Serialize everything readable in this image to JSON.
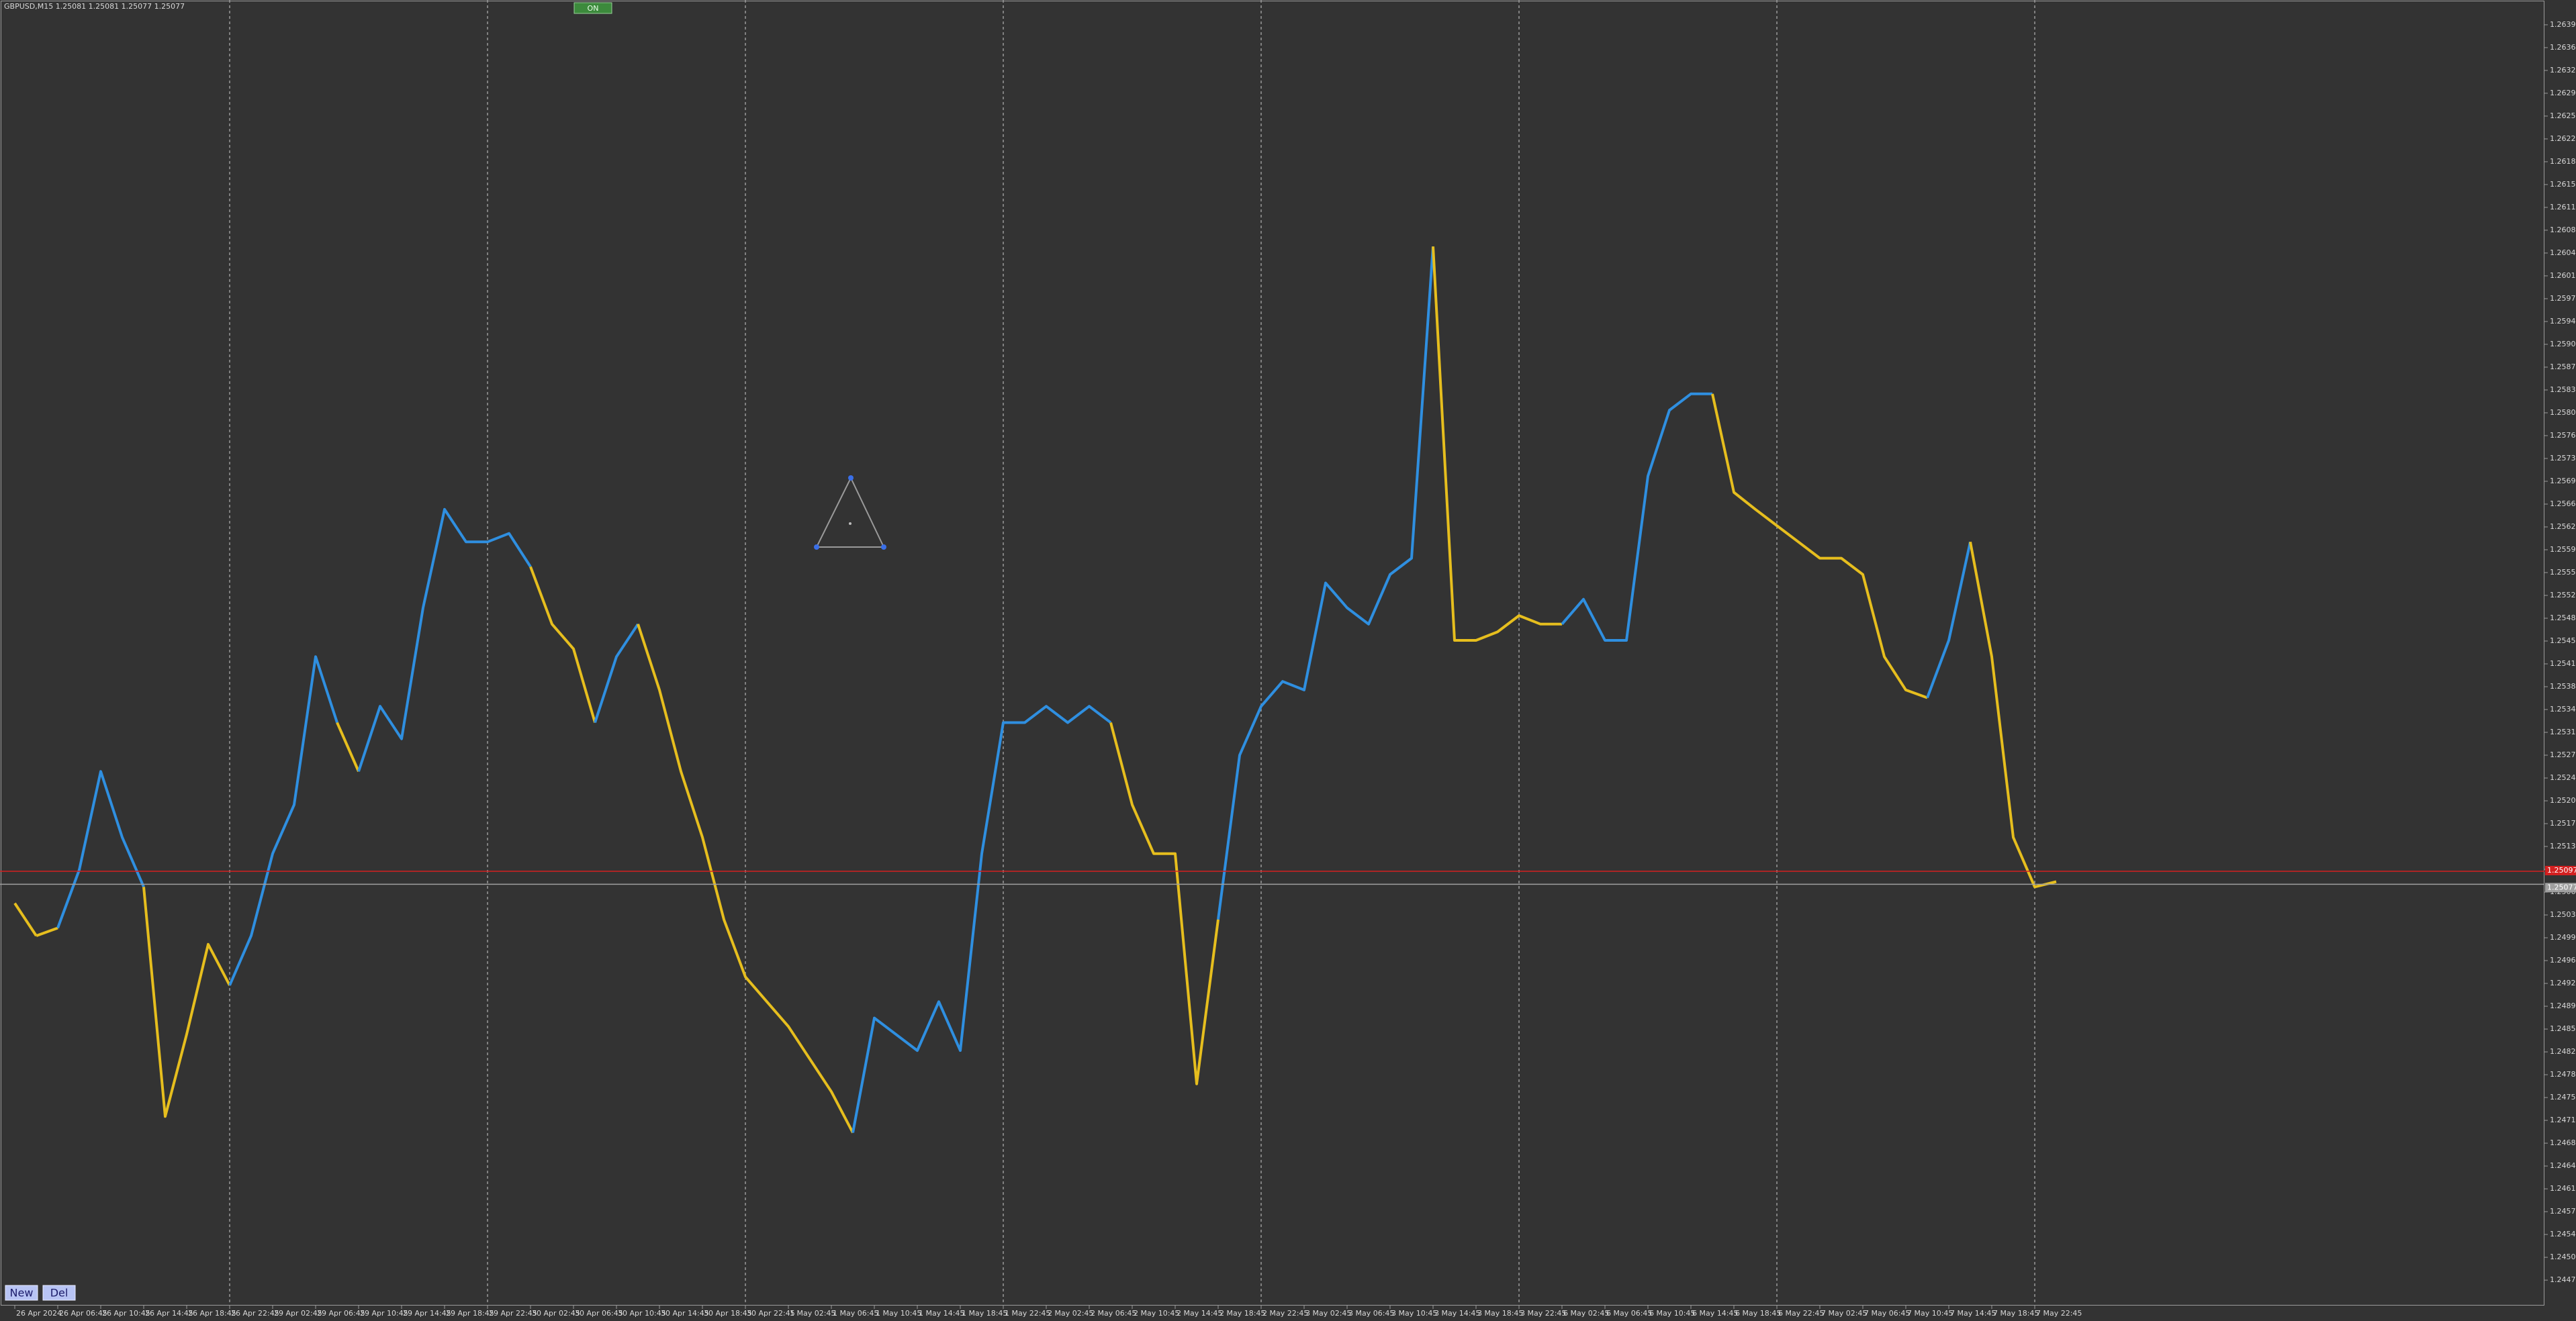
{
  "ui": {
    "header": "GBPUSD,M15  1.25081 1.25081 1.25077 1.25077",
    "toggle": "ON",
    "buttons": [
      "New",
      "Del"
    ]
  },
  "chart_data": {
    "type": "line",
    "categories": [
      "26 Apr 2024",
      null,
      "26 Apr 06:45",
      null,
      "26 Apr 10:45",
      null,
      "26 Apr 14:45",
      null,
      "26 Apr 18:45",
      null,
      "26 Apr 22:45",
      null,
      "29 Apr 02:45",
      null,
      "29 Apr 06:45",
      null,
      "29 Apr 10:45",
      null,
      "29 Apr 14:45",
      null,
      "29 Apr 18:45",
      null,
      "29 Apr 22:45",
      null,
      "30 Apr 02:45",
      null,
      "30 Apr 06:45",
      null,
      "30 Apr 10:45",
      null,
      "30 Apr 14:45",
      null,
      "30 Apr 18:45",
      null,
      "30 Apr 22:45",
      null,
      "1 May 02:45",
      null,
      "1 May 06:45",
      null,
      "1 May 10:45",
      null,
      "1 May 14:45",
      null,
      "1 May 18:45",
      null,
      "1 May 22:45",
      null,
      "2 May 02:45",
      null,
      "2 May 06:45",
      null,
      "2 May 10:45",
      null,
      "2 May 14:45",
      null,
      "2 May 18:45",
      null,
      "2 May 22:45",
      null,
      "3 May 02:45",
      null,
      "3 May 06:45",
      null,
      "3 May 10:45",
      null,
      "3 May 14:45",
      null,
      "3 May 18:45",
      null,
      "3 May 22:45",
      null,
      "6 May 02:45",
      null,
      "6 May 06:45",
      null,
      "6 May 10:45",
      null,
      "6 May 14:45",
      null,
      "6 May 18:45",
      null,
      "6 May 22:45",
      null,
      "7 May 02:45",
      null,
      "7 May 06:45",
      null,
      "7 May 10:45",
      null,
      "7 May 14:45",
      null,
      "7 May 18:45",
      null,
      "7 May 22:45",
      null
    ],
    "values": [
      1.25048,
      1.24998,
      1.2501,
      1.25099,
      1.2525,
      1.25149,
      1.25073,
      1.24721,
      1.24847,
      1.24985,
      1.24922,
      1.24998,
      1.25124,
      1.25199,
      1.25426,
      1.25325,
      1.2525,
      1.2535,
      1.253,
      1.25501,
      1.25652,
      1.25602,
      1.25602,
      1.25615,
      1.25564,
      1.25476,
      1.25438,
      1.25325,
      1.25426,
      1.25476,
      1.25375,
      1.2525,
      1.25149,
      1.25023,
      1.24935,
      1.24897,
      1.24859,
      1.24809,
      1.24759,
      1.24696,
      1.24872,
      1.24847,
      1.24822,
      1.24897,
      1.24822,
      1.25124,
      1.25325,
      1.25325,
      1.2535,
      1.25325,
      1.2535,
      1.25325,
      1.25199,
      1.25124,
      1.25124,
      1.24771,
      1.25023,
      1.25275,
      1.2535,
      1.25388,
      1.25375,
      1.25539,
      1.25501,
      1.25476,
      1.25552,
      1.25577,
      1.26055,
      1.25451,
      1.25451,
      1.25464,
      1.25489,
      1.25476,
      1.25476,
      1.25514,
      1.25451,
      1.25451,
      1.25703,
      1.25804,
      1.25829,
      1.25829,
      1.25678,
      1.25652,
      1.25627,
      1.25602,
      1.25577,
      1.25577,
      1.25552,
      1.25426,
      1.25375,
      1.25363,
      1.25451,
      1.25602,
      1.25426,
      1.25149,
      1.25073,
      1.25081
    ],
    "colors": [
      "#2f8fe0",
      "#e6be1e",
      "#e6be1e",
      "#2f8fe0",
      "#2f8fe0",
      "#2f8fe0",
      "#2f8fe0",
      "#e6be1e",
      "#e6be1e",
      "#e6be1e",
      "#e6be1e",
      "#2f8fe0",
      "#2f8fe0",
      "#2f8fe0",
      "#2f8fe0",
      "#2f8fe0",
      "#e6be1e",
      "#2f8fe0",
      "#2f8fe0",
      "#2f8fe0",
      "#2f8fe0",
      "#2f8fe0",
      "#2f8fe0",
      "#2f8fe0",
      "#2f8fe0",
      "#e6be1e",
      "#e6be1e",
      "#e6be1e",
      "#2f8fe0",
      "#2f8fe0",
      "#e6be1e",
      "#e6be1e",
      "#e6be1e",
      "#e6be1e",
      "#e6be1e",
      "#e6be1e",
      "#e6be1e",
      "#e6be1e",
      "#e6be1e",
      "#e6be1e",
      "#2f8fe0",
      "#2f8fe0",
      "#2f8fe0",
      "#2f8fe0",
      "#2f8fe0",
      "#2f8fe0",
      "#2f8fe0",
      "#2f8fe0",
      "#2f8fe0",
      "#2f8fe0",
      "#2f8fe0",
      "#2f8fe0",
      "#e6be1e",
      "#e6be1e",
      "#e6be1e",
      "#e6be1e",
      "#e6be1e",
      "#2f8fe0",
      "#2f8fe0",
      "#2f8fe0",
      "#2f8fe0",
      "#2f8fe0",
      "#2f8fe0",
      "#2f8fe0",
      "#2f8fe0",
      "#2f8fe0",
      "#2f8fe0",
      "#e6be1e",
      "#e6be1e",
      "#e6be1e",
      "#e6be1e",
      "#e6be1e",
      "#e6be1e",
      "#2f8fe0",
      "#2f8fe0",
      "#2f8fe0",
      "#2f8fe0",
      "#2f8fe0",
      "#2f8fe0",
      "#2f8fe0",
      "#e6be1e",
      "#e6be1e",
      "#e6be1e",
      "#e6be1e",
      "#e6be1e",
      "#e6be1e",
      "#e6be1e",
      "#e6be1e",
      "#e6be1e",
      "#e6be1e",
      "#2f8fe0",
      "#2f8fe0",
      "#e6be1e",
      "#e6be1e",
      "#e6be1e",
      "#e6be1e"
    ],
    "ylim": [
      1.24431,
      1.26433
    ],
    "yticks": [
      1.26395,
      {
        "value": 1.2636,
        "label": "1.26360"
      },
      1.26325,
      {
        "value": 1.2629,
        "label": "1.26290"
      },
      1.26255,
      {
        "value": 1.2622,
        "label": "1.26220"
      },
      1.26185,
      {
        "value": 1.2615,
        "label": "1.26150"
      },
      1.26115,
      {
        "value": 1.2608,
        "label": "1.26080"
      },
      1.26045,
      {
        "value": 1.2601,
        "label": "1.26010"
      },
      1.25975,
      {
        "value": 1.2594,
        "label": "1.25940"
      },
      1.25905,
      {
        "value": 1.2587,
        "label": "1.25870"
      },
      1.25835,
      {
        "value": 1.258,
        "label": "1.25800"
      },
      1.25765,
      {
        "value": 1.2573,
        "label": "1.25730"
      },
      1.25695,
      {
        "value": 1.2566,
        "label": "1.25660"
      },
      1.25625,
      {
        "value": 1.2559,
        "label": "1.25590"
      },
      1.25555,
      {
        "value": 1.2552,
        "label": "1.25520"
      },
      1.25485,
      {
        "value": 1.2545,
        "label": "1.25450"
      },
      1.25415,
      {
        "value": 1.2538,
        "label": "1.25380"
      },
      1.25345,
      {
        "value": 1.2531,
        "label": "1.25310"
      },
      1.25275,
      {
        "value": 1.2524,
        "label": "1.25240"
      },
      1.25205,
      {
        "value": 1.2517,
        "label": "1.25170"
      },
      1.25135,
      {
        "value": 1.251,
        "label": "1.25100"
      },
      1.25065,
      {
        "value": 1.2503,
        "label": "1.25030"
      },
      1.24995,
      {
        "value": 1.2496,
        "label": "1.24960"
      },
      1.24925,
      {
        "value": 1.2489,
        "label": "1.24890"
      },
      1.24855,
      {
        "value": 1.2482,
        "label": "1.24820"
      },
      1.24785,
      {
        "value": 1.2475,
        "label": "1.24750"
      },
      1.24715,
      {
        "value": 1.2468,
        "label": "1.24680"
      },
      1.24645,
      {
        "value": 1.2461,
        "label": "1.24610"
      },
      1.24575,
      {
        "value": 1.2454,
        "label": "1.24540"
      },
      1.24505,
      {
        "value": 1.2447,
        "label": "1.24470"
      }
    ],
    "price_lines": [
      {
        "value": 1.25097,
        "color": "#d42020"
      },
      {
        "value": 1.25077,
        "color": "#a0a0a0"
      }
    ],
    "grid": false
  }
}
